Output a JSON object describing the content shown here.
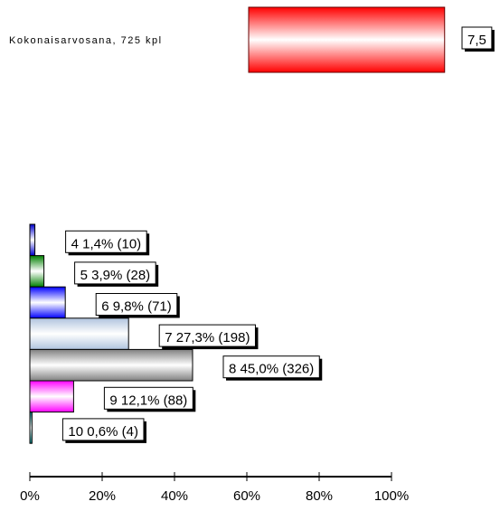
{
  "chart_data": [
    {
      "type": "hbar",
      "categories": [
        "Kokonaisarvosana, 725 kpl"
      ],
      "values": [
        7.5
      ],
      "value_labels": [
        "7,5"
      ],
      "color": "#ff0000",
      "xlim": [
        0,
        10
      ]
    },
    {
      "type": "hbar",
      "categories": [
        "4",
        "5",
        "6",
        "7",
        "8",
        "9",
        "10"
      ],
      "values": [
        1.4,
        3.9,
        9.8,
        27.3,
        45.0,
        12.1,
        0.6
      ],
      "value_labels": [
        "1,4%",
        "3,9%",
        "9,8%",
        "27,3%",
        "45,0%",
        "12,1%",
        "0,6%"
      ],
      "count_labels": [
        "(10)",
        "(28)",
        "(71)",
        "(198)",
        "(326)",
        "(88)",
        "(4)"
      ],
      "colors": [
        "#0000cc",
        "#008000",
        "#0000ff",
        "#b0c4de",
        "#808080",
        "#ff00ff",
        "#008080"
      ],
      "xlim": [
        0,
        100
      ],
      "xticks": [
        {
          "value": 0,
          "label": "0%"
        },
        {
          "value": 20,
          "label": "20%"
        },
        {
          "value": 40,
          "label": "40%"
        },
        {
          "value": 60,
          "label": "60%"
        },
        {
          "value": 80,
          "label": "80%"
        },
        {
          "value": 100,
          "label": "100%"
        }
      ]
    }
  ]
}
